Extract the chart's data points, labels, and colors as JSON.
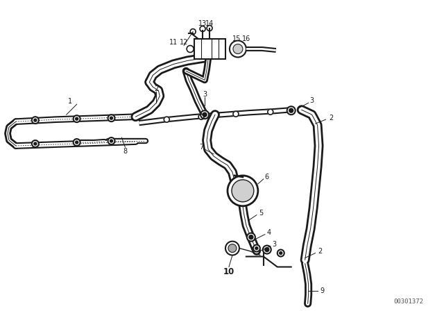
{
  "background_color": "#ffffff",
  "diagram_id": "00301372",
  "fig_width": 6.4,
  "fig_height": 4.48,
  "dpi": 100,
  "line_color": "#1a1a1a",
  "label_fontsize": 7.0,
  "bold_label_fontsize": 8.5,
  "diagram_id_fontsize": 6.5
}
